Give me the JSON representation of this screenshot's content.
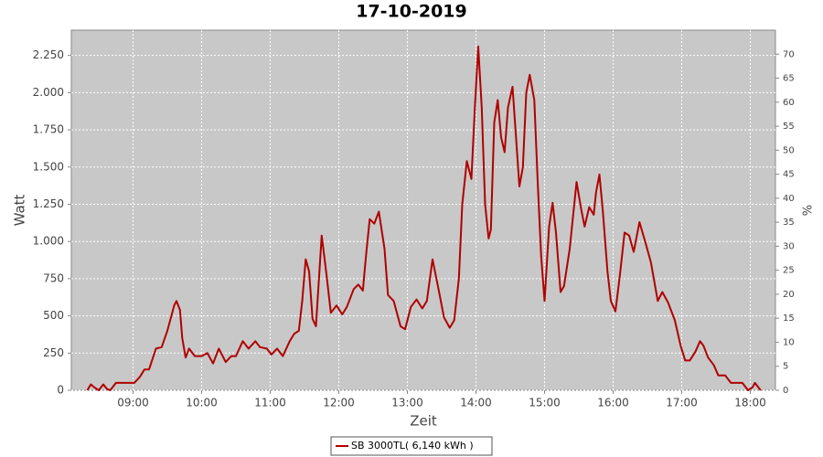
{
  "chart_data": {
    "type": "line",
    "title": "17-10-2019",
    "x_label": "Zeit",
    "y_label": "Watt",
    "y2_label": "%",
    "x": [
      "08:20",
      "08:23",
      "08:26",
      "08:30",
      "08:34",
      "08:37",
      "08:40",
      "08:45",
      "08:56",
      "09:01",
      "09:06",
      "09:10",
      "09:14",
      "09:20",
      "09:25",
      "09:30",
      "09:36",
      "09:38",
      "09:41",
      "09:43",
      "09:46",
      "09:49",
      "09:54",
      "10:00",
      "10:05",
      "10:10",
      "10:15",
      "10:21",
      "10:26",
      "10:30",
      "10:36",
      "10:41",
      "10:47",
      "10:51",
      "10:57",
      "11:01",
      "11:06",
      "11:11",
      "11:17",
      "11:21",
      "11:25",
      "11:28",
      "11:31",
      "11:34",
      "11:37",
      "11:40",
      "11:45",
      "11:49",
      "11:53",
      "11:58",
      "12:03",
      "12:07",
      "12:13",
      "12:17",
      "12:21",
      "12:24",
      "12:27",
      "12:31",
      "12:35",
      "12:40",
      "12:43",
      "12:48",
      "12:54",
      "12:58",
      "13:03",
      "13:08",
      "13:13",
      "13:17",
      "13:22",
      "13:28",
      "13:32",
      "13:37",
      "13:41",
      "13:45",
      "13:48",
      "13:52",
      "13:56",
      "13:59",
      "14:02",
      "14:05",
      "14:08",
      "14:11",
      "14:13",
      "14:16",
      "14:19",
      "14:22",
      "14:25",
      "14:28",
      "14:32",
      "14:35",
      "14:38",
      "14:41",
      "14:44",
      "14:47",
      "14:51",
      "14:54",
      "14:57",
      "15:00",
      "15:04",
      "15:07",
      "15:10",
      "15:14",
      "15:17",
      "15:22",
      "15:28",
      "15:32",
      "15:35",
      "15:39",
      "15:43",
      "15:45",
      "15:48",
      "15:51",
      "15:55",
      "15:58",
      "16:02",
      "16:06",
      "16:10",
      "16:14",
      "16:18",
      "16:23",
      "16:28",
      "16:33",
      "16:39",
      "16:43",
      "16:48",
      "16:54",
      "16:59",
      "17:03",
      "17:07",
      "17:12",
      "17:16",
      "17:19",
      "17:23",
      "17:28",
      "17:32",
      "17:38",
      "17:43",
      "17:53",
      "17:58",
      "18:02",
      "18:04",
      "18:09"
    ],
    "series": [
      {
        "name": "SB 3000TL( 6,140 kWh )",
        "color": "#b00000",
        "values": [
          0,
          40,
          20,
          0,
          40,
          10,
          0,
          50,
          50,
          50,
          90,
          140,
          140,
          280,
          290,
          400,
          570,
          600,
          540,
          350,
          220,
          280,
          230,
          230,
          250,
          180,
          280,
          190,
          230,
          230,
          330,
          280,
          330,
          290,
          280,
          240,
          280,
          230,
          330,
          380,
          400,
          600,
          880,
          800,
          480,
          430,
          1040,
          790,
          520,
          570,
          510,
          560,
          680,
          710,
          670,
          920,
          1150,
          1120,
          1200,
          950,
          640,
          600,
          430,
          410,
          560,
          610,
          550,
          600,
          880,
          650,
          490,
          420,
          470,
          750,
          1250,
          1540,
          1420,
          1900,
          2310,
          1900,
          1250,
          1020,
          1080,
          1800,
          1950,
          1700,
          1600,
          1900,
          2040,
          1700,
          1370,
          1500,
          2000,
          2120,
          1950,
          1400,
          900,
          600,
          1100,
          1260,
          1060,
          660,
          700,
          950,
          1400,
          1220,
          1100,
          1230,
          1180,
          1330,
          1450,
          1200,
          800,
          600,
          530,
          780,
          1060,
          1040,
          930,
          1130,
          1000,
          860,
          600,
          660,
          590,
          470,
          300,
          200,
          200,
          260,
          330,
          300,
          220,
          170,
          100,
          100,
          50,
          50,
          0,
          20,
          50,
          0
        ]
      }
    ],
    "xlim": [
      "08:06",
      "18:22"
    ],
    "xticks": [
      "09:00",
      "10:00",
      "11:00",
      "12:00",
      "13:00",
      "14:00",
      "15:00",
      "16:00",
      "17:00",
      "18:00"
    ],
    "ylim": [
      0,
      2420
    ],
    "yticks": [
      0,
      250,
      500,
      750,
      {
        "value": 1000,
        "label": "1.000"
      },
      {
        "value": 1250,
        "label": "1.250"
      },
      {
        "value": 1500,
        "label": "1.500"
      },
      {
        "value": 1750,
        "label": "1.750"
      },
      {
        "value": 2000,
        "label": "2.000"
      },
      {
        "value": 2250,
        "label": "2.250"
      }
    ],
    "y2lim": [
      0,
      75
    ],
    "y2ticks": [
      0,
      5,
      10,
      15,
      20,
      25,
      30,
      35,
      40,
      45,
      50,
      55,
      60,
      65,
      70
    ],
    "grid": true
  }
}
